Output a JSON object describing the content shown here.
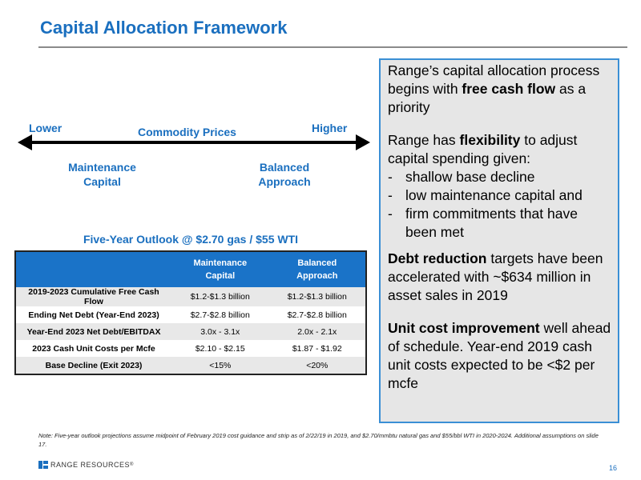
{
  "title": "Capital Allocation Framework",
  "scale": {
    "lower": "Lower",
    "higher": "Higher",
    "center": "Commodity Prices",
    "maintenance_line1": "Maintenance",
    "maintenance_line2": "Capital",
    "balanced_line1": "Balanced",
    "balanced_line2": "Approach"
  },
  "table": {
    "title": "Five-Year Outlook @ $2.70 gas / $55 WTI",
    "col1_line1": "Maintenance",
    "col1_line2": "Capital",
    "col2_line1": "Balanced",
    "col2_line2": "Approach",
    "rows": [
      {
        "label": "2019-2023 Cumulative Free Cash Flow",
        "maintenance": "$1.2-$1.3 billion",
        "balanced": "$1.2-$1.3 billion"
      },
      {
        "label": "Ending Net Debt (Year-End 2023)",
        "maintenance": "$2.7-$2.8 billion",
        "balanced": "$2.7-$2.8 billion"
      },
      {
        "label": "Year-End 2023 Net Debt/EBITDAX",
        "maintenance": "3.0x - 3.1x",
        "balanced": "2.0x - 2.1x"
      },
      {
        "label": "2023 Cash Unit Costs per Mcfe",
        "maintenance": "$2.10 - $2.15",
        "balanced": "$1.87 - $1.92"
      },
      {
        "label": "Base Decline (Exit 2023)",
        "maintenance": "<15%",
        "balanced": "<20%"
      }
    ]
  },
  "callout": {
    "p1_a": "Range’s capital allocation process begins with ",
    "p1_b": "free cash flow",
    "p1_c": " as a priority",
    "p2_a": "Range has ",
    "p2_b": "flexibility",
    "p2_c": " to adjust capital spending given:",
    "bullet_dash": "-",
    "bullets": [
      "shallow base decline",
      "low maintenance capital and",
      "firm commitments that have been met"
    ],
    "p3_a": "Debt reduction",
    "p3_b": " targets have been accelerated with ~$634 million in asset sales in 2019",
    "p4_a": "Unit cost improvement",
    "p4_b": " well ahead of schedule. Year-end 2019 cash unit costs expected to be <$2 per mcfe"
  },
  "footnote": "Note: Five-year outlook projections assume midpoint of February 2019 cost guidance and strip as of 2/22/19 in 2019, and $2.70/mmbtu natural gas and $55/bbl WTI in 2020-2024. Additional assumptions on slide 17.",
  "logo_text": "RANGE RESOURCES",
  "logo_mark": "®",
  "page_number": "16",
  "colors": {
    "accent": "#1a6fbf",
    "header_fill": "#1a73c8",
    "callout_border": "#3a8fd5"
  }
}
